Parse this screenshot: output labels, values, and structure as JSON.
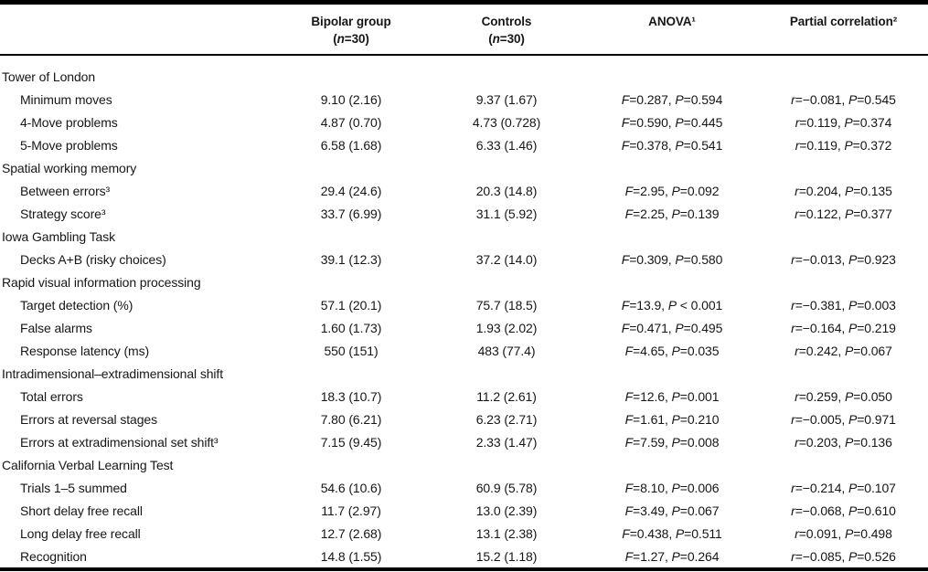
{
  "table": {
    "header": {
      "label_col": "",
      "bipolar_line1": "Bipolar group",
      "bipolar_line2": "(n=30)",
      "controls_line1": "Controls",
      "controls_line2": "(n=30)",
      "anova": "ANOVA¹",
      "partial": "Partial correlation²"
    },
    "rows": [
      {
        "section": "Tower of London"
      },
      {
        "label": "Minimum moves",
        "bipolar": "9.10 (2.16)",
        "controls": "9.37 (1.67)",
        "anova": "F=0.287, P=0.594",
        "partial": "r=−0.081, P=0.545"
      },
      {
        "label": "4-Move problems",
        "bipolar": "4.87 (0.70)",
        "controls": "4.73 (0.728)",
        "anova": "F=0.590, P=0.445",
        "partial": "r=0.119, P=0.374"
      },
      {
        "label": "5-Move problems",
        "bipolar": "6.58 (1.68)",
        "controls": "6.33 (1.46)",
        "anova": "F=0.378, P=0.541",
        "partial": "r=0.119, P=0.372"
      },
      {
        "section": "Spatial working memory"
      },
      {
        "label": "Between errors³",
        "bipolar": "29.4 (24.6)",
        "controls": "20.3 (14.8)",
        "anova": "F=2.95, P=0.092",
        "partial": "r=0.204, P=0.135"
      },
      {
        "label": "Strategy score³",
        "bipolar": "33.7 (6.99)",
        "controls": "31.1 (5.92)",
        "anova": "F=2.25, P=0.139",
        "partial": "r=0.122, P=0.377"
      },
      {
        "section": "Iowa Gambling Task"
      },
      {
        "label": "Decks A+B (risky choices)",
        "bipolar": "39.1 (12.3)",
        "controls": "37.2 (14.0)",
        "anova": "F=0.309, P=0.580",
        "partial": "r=−0.013, P=0.923"
      },
      {
        "section": "Rapid visual information processing"
      },
      {
        "label": "Target detection (%)",
        "bipolar": "57.1 (20.1)",
        "controls": "75.7 (18.5)",
        "anova": "F=13.9, P < 0.001",
        "partial": "r=−0.381, P=0.003"
      },
      {
        "label": "False alarms",
        "bipolar": "1.60 (1.73)",
        "controls": "1.93 (2.02)",
        "anova": "F=0.471, P=0.495",
        "partial": "r=−0.164, P=0.219"
      },
      {
        "label": "Response latency (ms)",
        "bipolar": "550 (151)",
        "controls": "483 (77.4)",
        "anova": "F=4.65, P=0.035",
        "partial": "r=0.242, P=0.067"
      },
      {
        "section": "Intradimensional–extradimensional shift"
      },
      {
        "label": "Total errors",
        "bipolar": "18.3 (10.7)",
        "controls": "11.2 (2.61)",
        "anova": "F=12.6, P=0.001",
        "partial": "r=0.259, P=0.050"
      },
      {
        "label": "Errors at reversal stages",
        "bipolar": "7.80 (6.21)",
        "controls": "6.23 (2.71)",
        "anova": "F=1.61, P=0.210",
        "partial": "r=−0.005, P=0.971"
      },
      {
        "label": "Errors at extradimensional set shift³",
        "bipolar": "7.15 (9.45)",
        "controls": "2.33 (1.47)",
        "anova": "F=7.59, P=0.008",
        "partial": "r=0.203, P=0.136"
      },
      {
        "section": "California Verbal Learning Test"
      },
      {
        "label": "Trials 1–5 summed",
        "bipolar": "54.6 (10.6)",
        "controls": "60.9 (5.78)",
        "anova": "F=8.10, P=0.006",
        "partial": "r=−0.214, P=0.107"
      },
      {
        "label": "Short delay free recall",
        "bipolar": "11.7 (2.97)",
        "controls": "13.0 (2.39)",
        "anova": "F=3.49, P=0.067",
        "partial": "r=−0.068, P=0.610"
      },
      {
        "label": "Long delay free recall",
        "bipolar": "12.7 (2.68)",
        "controls": "13.1 (2.38)",
        "anova": "F=0.438, P=0.511",
        "partial": "r=0.091, P=0.498"
      },
      {
        "label": "Recognition",
        "bipolar": "14.8 (1.55)",
        "controls": "15.2 (1.18)",
        "anova": "F=1.27, P=0.264",
        "partial": "r=−0.085, P=0.526"
      }
    ]
  }
}
